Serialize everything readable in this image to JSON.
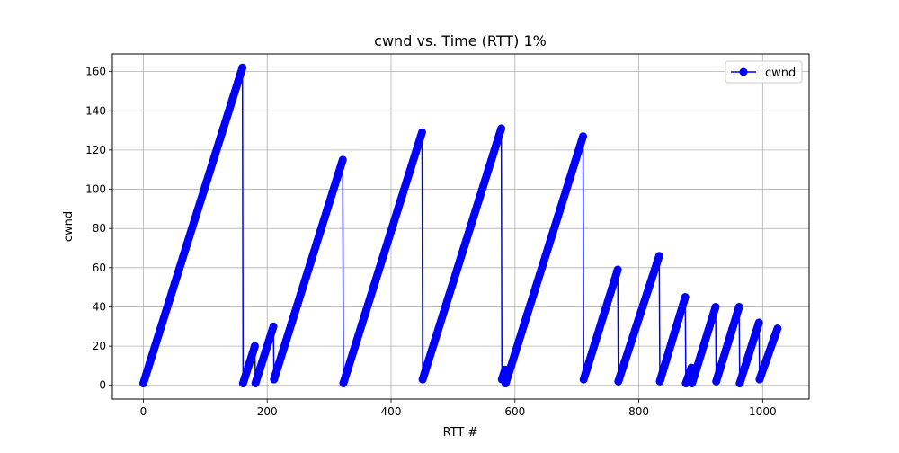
{
  "chart_data": {
    "type": "line",
    "title": "cwnd vs. Time (RTT) 1%",
    "xlabel": "RTT #",
    "ylabel": "cwnd",
    "xlim": [
      -50,
      1075
    ],
    "ylim": [
      -7,
      169
    ],
    "xticks": [
      0,
      200,
      400,
      600,
      800,
      1000
    ],
    "xtick_labels": [
      "0",
      "200",
      "400",
      "600",
      "800",
      "1000"
    ],
    "yticks": [
      0,
      20,
      40,
      60,
      80,
      100,
      120,
      140,
      160
    ],
    "ytick_labels": [
      "0",
      "20",
      "40",
      "60",
      "80",
      "100",
      "120",
      "140",
      "160"
    ],
    "grid": true,
    "legend_position": "top-right",
    "series": [
      {
        "name": "cwnd",
        "color": "#0000ff",
        "marker": "circle",
        "segments": [
          {
            "x_start": 0,
            "x_end": 160,
            "y_start": 1,
            "y_end": 162
          },
          {
            "x_start": 161,
            "x_end": 180,
            "y_start": 1,
            "y_end": 20
          },
          {
            "x_start": 181,
            "x_end": 210,
            "y_start": 1,
            "y_end": 30
          },
          {
            "x_start": 211,
            "x_end": 322,
            "y_start": 3,
            "y_end": 115
          },
          {
            "x_start": 323,
            "x_end": 450,
            "y_start": 1,
            "y_end": 129
          },
          {
            "x_start": 451,
            "x_end": 578,
            "y_start": 3,
            "y_end": 131
          },
          {
            "x_start": 579,
            "x_end": 584,
            "y_start": 3,
            "y_end": 8
          },
          {
            "x_start": 585,
            "x_end": 710,
            "y_start": 1,
            "y_end": 127
          },
          {
            "x_start": 711,
            "x_end": 766,
            "y_start": 3,
            "y_end": 59
          },
          {
            "x_start": 767,
            "x_end": 833,
            "y_start": 2,
            "y_end": 66
          },
          {
            "x_start": 834,
            "x_end": 875,
            "y_start": 2,
            "y_end": 45
          },
          {
            "x_start": 876,
            "x_end": 885,
            "y_start": 1,
            "y_end": 9
          },
          {
            "x_start": 886,
            "x_end": 924,
            "y_start": 1,
            "y_end": 40
          },
          {
            "x_start": 925,
            "x_end": 962,
            "y_start": 2,
            "y_end": 40
          },
          {
            "x_start": 963,
            "x_end": 994,
            "y_start": 1,
            "y_end": 32
          },
          {
            "x_start": 995,
            "x_end": 1024,
            "y_start": 3,
            "y_end": 29
          }
        ]
      }
    ]
  }
}
